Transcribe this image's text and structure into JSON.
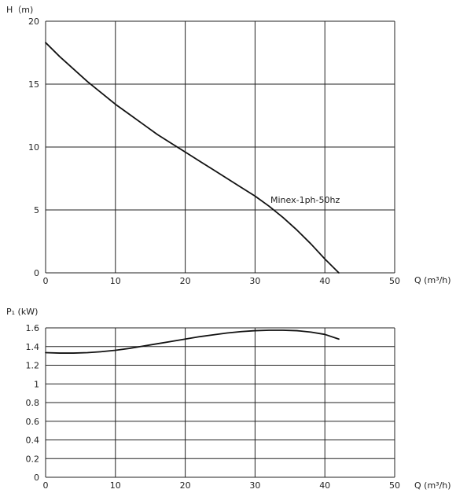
{
  "chart_data": [
    {
      "type": "line",
      "ylabel": "H（m)",
      "xlabel": "Q (m³/h)",
      "xlim": [
        0,
        50
      ],
      "ylim": [
        0,
        20
      ],
      "grid": true,
      "x_ticks": [
        "0",
        "10",
        "20",
        "30",
        "40",
        "50"
      ],
      "y_ticks": [
        "0",
        "5",
        "10",
        "15",
        "20"
      ],
      "series": [
        {
          "name": "Minex-1ph-50hz",
          "x": [
            0,
            2,
            4,
            6,
            8,
            10,
            12,
            14,
            16,
            18,
            20,
            22,
            24,
            26,
            28,
            30,
            32,
            34,
            36,
            38,
            40,
            42
          ],
          "y": [
            18.3,
            17.2,
            16.2,
            15.2,
            14.3,
            13.4,
            12.6,
            11.8,
            11.0,
            10.3,
            9.6,
            8.9,
            8.2,
            7.5,
            6.8,
            6.1,
            5.3,
            4.4,
            3.4,
            2.3,
            1.1,
            0.0
          ]
        }
      ]
    },
    {
      "type": "line",
      "ylabel": "P₁ (kW)",
      "xlabel": "Q (m³/h)",
      "xlim": [
        0,
        50
      ],
      "ylim": [
        0,
        1.6
      ],
      "grid": true,
      "x_ticks": [
        "0",
        "10",
        "20",
        "30",
        "40",
        "50"
      ],
      "y_ticks": [
        "0",
        "0.2",
        "0.4",
        "0.6",
        "0.8",
        "1",
        "1.2",
        "1.4",
        "1.6"
      ],
      "series": [
        {
          "x": [
            0,
            2,
            4,
            6,
            8,
            10,
            12,
            14,
            16,
            18,
            20,
            22,
            24,
            26,
            28,
            30,
            32,
            34,
            36,
            38,
            40,
            42
          ],
          "y": [
            1.335,
            1.33,
            1.33,
            1.335,
            1.345,
            1.36,
            1.38,
            1.405,
            1.43,
            1.455,
            1.48,
            1.505,
            1.525,
            1.545,
            1.56,
            1.57,
            1.575,
            1.575,
            1.57,
            1.555,
            1.53,
            1.48
          ]
        }
      ]
    }
  ]
}
